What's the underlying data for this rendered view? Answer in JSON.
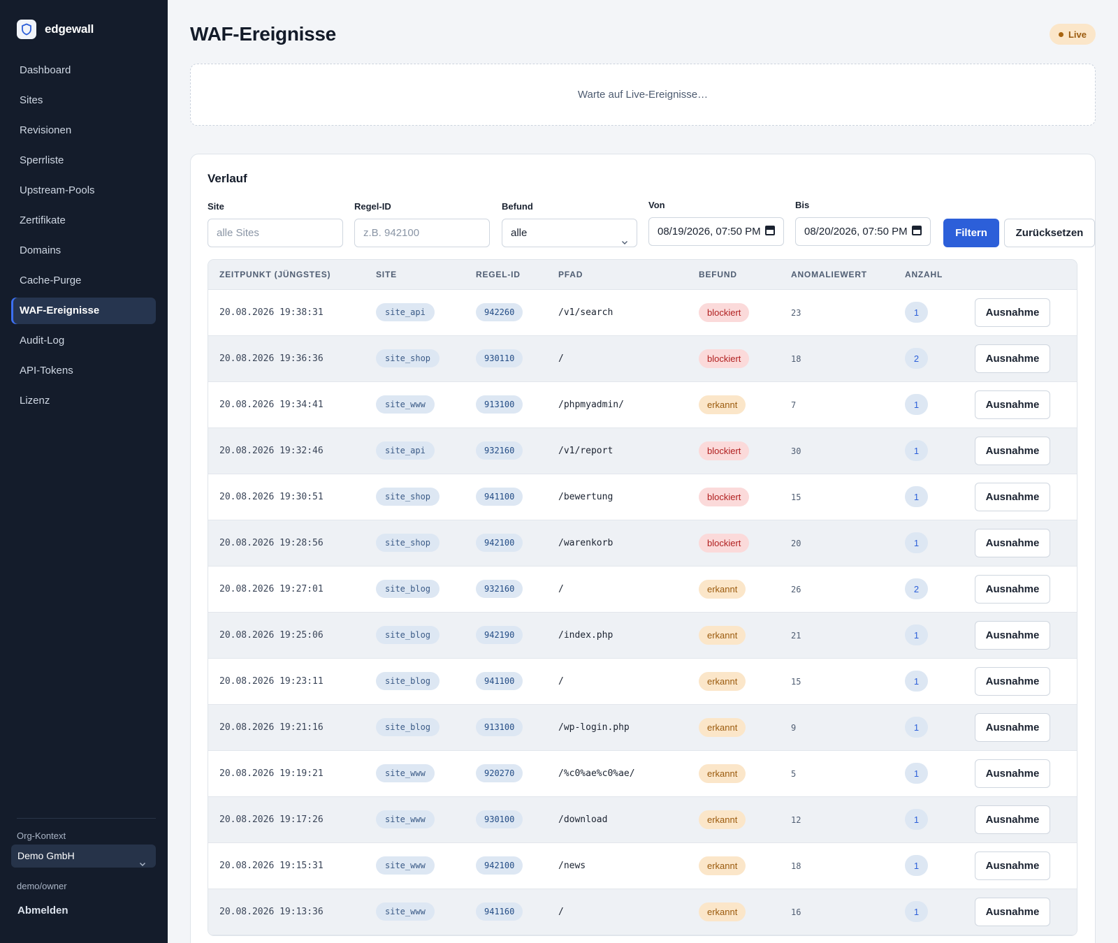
{
  "brand": {
    "name": "edgewall",
    "icon": "shield-icon"
  },
  "nav": [
    {
      "label": "Dashboard",
      "active": false
    },
    {
      "label": "Sites",
      "active": false
    },
    {
      "label": "Revisionen",
      "active": false
    },
    {
      "label": "Sperrliste",
      "active": false
    },
    {
      "label": "Upstream-Pools",
      "active": false
    },
    {
      "label": "Zertifikate",
      "active": false
    },
    {
      "label": "Domains",
      "active": false
    },
    {
      "label": "Cache-Purge",
      "active": false
    },
    {
      "label": "WAF-Ereignisse",
      "active": true
    },
    {
      "label": "Audit-Log",
      "active": false
    },
    {
      "label": "API-Tokens",
      "active": false
    },
    {
      "label": "Lizenz",
      "active": false
    }
  ],
  "org": {
    "label": "Org-Kontext",
    "value": "Demo GmbH"
  },
  "user": "demo/owner",
  "logout_label": "Abmelden",
  "page": {
    "title": "WAF-Ereignisse",
    "live_badge": "Live",
    "live_placeholder": "Warte auf Live-Ereignisse…"
  },
  "history": {
    "title": "Verlauf",
    "filters": {
      "site": {
        "label": "Site",
        "placeholder": "alle Sites"
      },
      "rule": {
        "label": "Regel-ID",
        "placeholder": "z.B. 942100"
      },
      "befund": {
        "label": "Befund",
        "value": "alle"
      },
      "from": {
        "label": "Von",
        "value": "08/19/2026, 07:50 PM"
      },
      "to": {
        "label": "Bis",
        "value": "08/20/2026, 07:50 PM"
      },
      "filter_button": "Filtern",
      "reset_button": "Zurücksetzen"
    },
    "columns": [
      "ZEITPUNKT (JÜNGSTES)",
      "SITE",
      "REGEL-ID",
      "PFAD",
      "BEFUND",
      "ANOMALIEWERT",
      "ANZAHL",
      ""
    ],
    "action_label": "Ausnahme",
    "rows": [
      {
        "time": "20.08.2026 19:38:31",
        "site": "site_api",
        "rule": "942260",
        "path": "/v1/search",
        "befund": "blockiert",
        "score": "23",
        "count": "1"
      },
      {
        "time": "20.08.2026 19:36:36",
        "site": "site_shop",
        "rule": "930110",
        "path": "/",
        "befund": "blockiert",
        "score": "18",
        "count": "2"
      },
      {
        "time": "20.08.2026 19:34:41",
        "site": "site_www",
        "rule": "913100",
        "path": "/phpmyadmin/",
        "befund": "erkannt",
        "score": "7",
        "count": "1"
      },
      {
        "time": "20.08.2026 19:32:46",
        "site": "site_api",
        "rule": "932160",
        "path": "/v1/report",
        "befund": "blockiert",
        "score": "30",
        "count": "1"
      },
      {
        "time": "20.08.2026 19:30:51",
        "site": "site_shop",
        "rule": "941100",
        "path": "/bewertung",
        "befund": "blockiert",
        "score": "15",
        "count": "1"
      },
      {
        "time": "20.08.2026 19:28:56",
        "site": "site_shop",
        "rule": "942100",
        "path": "/warenkorb",
        "befund": "blockiert",
        "score": "20",
        "count": "1"
      },
      {
        "time": "20.08.2026 19:27:01",
        "site": "site_blog",
        "rule": "932160",
        "path": "/",
        "befund": "erkannt",
        "score": "26",
        "count": "2"
      },
      {
        "time": "20.08.2026 19:25:06",
        "site": "site_blog",
        "rule": "942190",
        "path": "/index.php",
        "befund": "erkannt",
        "score": "21",
        "count": "1"
      },
      {
        "time": "20.08.2026 19:23:11",
        "site": "site_blog",
        "rule": "941100",
        "path": "/",
        "befund": "erkannt",
        "score": "15",
        "count": "1"
      },
      {
        "time": "20.08.2026 19:21:16",
        "site": "site_blog",
        "rule": "913100",
        "path": "/wp-login.php",
        "befund": "erkannt",
        "score": "9",
        "count": "1"
      },
      {
        "time": "20.08.2026 19:19:21",
        "site": "site_www",
        "rule": "920270",
        "path": "/%c0%ae%c0%ae/",
        "befund": "erkannt",
        "score": "5",
        "count": "1"
      },
      {
        "time": "20.08.2026 19:17:26",
        "site": "site_www",
        "rule": "930100",
        "path": "/download",
        "befund": "erkannt",
        "score": "12",
        "count": "1"
      },
      {
        "time": "20.08.2026 19:15:31",
        "site": "site_www",
        "rule": "942100",
        "path": "/news",
        "befund": "erkannt",
        "score": "18",
        "count": "1"
      },
      {
        "time": "20.08.2026 19:13:36",
        "site": "site_www",
        "rule": "941160",
        "path": "/",
        "befund": "erkannt",
        "score": "16",
        "count": "1"
      }
    ]
  },
  "colors": {
    "sidebar_bg": "#141c2b",
    "accent": "#2c5fd9",
    "blockiert": "#b01f1f",
    "erkannt": "#9b5b0e"
  }
}
